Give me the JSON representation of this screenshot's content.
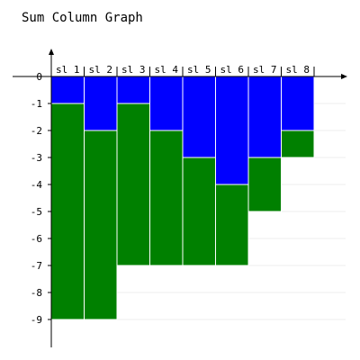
{
  "chart_data": {
    "type": "bar",
    "stacked": true,
    "title": "Sum Column Graph",
    "categories": [
      "sl 1",
      "sl 2",
      "sl 3",
      "sl 4",
      "sl 5",
      "sl 6",
      "sl 7",
      "sl 8"
    ],
    "series": [
      {
        "color": "#0000ff",
        "values": [
          -1,
          -2,
          -1,
          -2,
          -3,
          -4,
          -3,
          -2
        ]
      },
      {
        "color": "#008000",
        "values": [
          -8,
          -7,
          -6,
          -5,
          -4,
          -3,
          -2,
          -1
        ]
      }
    ],
    "totals": [
      -9,
      -9,
      -7,
      -7,
      -7,
      -7,
      -5,
      -3
    ],
    "ylim": [
      -10,
      1
    ],
    "yticks": [
      0,
      -1,
      -2,
      -3,
      -4,
      -5,
      -6,
      -7,
      -8,
      -9
    ],
    "ytick_labels": [
      "0",
      "-1",
      "-2",
      "-3",
      "-4",
      "-5",
      "-6",
      "-7",
      "-8",
      "-9"
    ],
    "grid": true,
    "xlabel": "",
    "ylabel": ""
  }
}
